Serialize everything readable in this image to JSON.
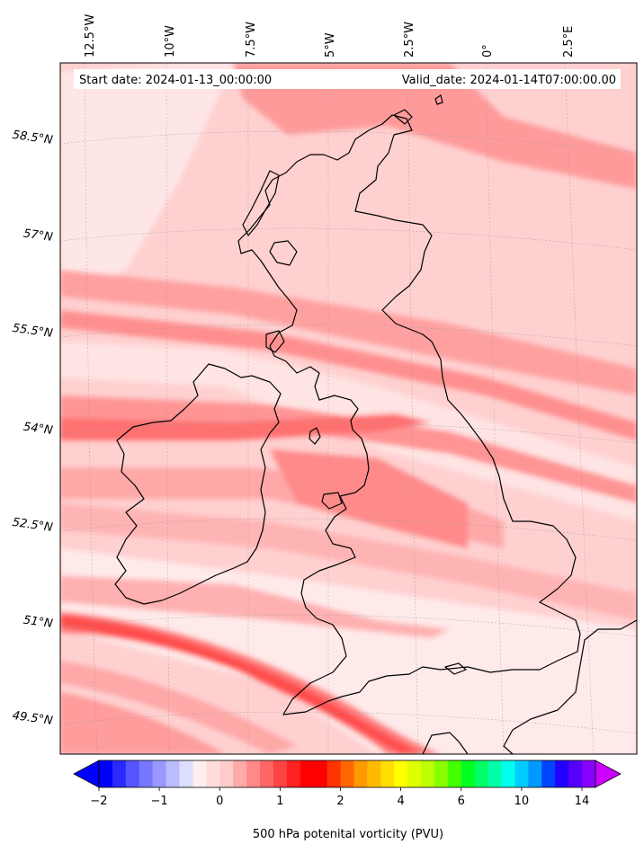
{
  "header": {
    "start_date": "Start date: 2024-01-13_00:00:00",
    "valid_date": "Valid_date: 2024-01-14T07:00:00.00"
  },
  "map": {
    "projection": "lambert-conformal",
    "region": "British Isles",
    "field": "500 hPa potential vorticity",
    "lon_labels": [
      "12.5°W",
      "10°W",
      "7.5°W",
      "5°W",
      "2.5°W",
      "0°",
      "2.5°E"
    ],
    "lat_labels": [
      "58.5°N",
      "57°N",
      "55.5°N",
      "54°N",
      "52.5°N",
      "51°N",
      "49.5°N"
    ],
    "gridlines": true,
    "coastlines": true
  },
  "colorbar": {
    "label": "500 hPa potenital vorticity (PVU)",
    "ticks": [
      "−2",
      "−1",
      "0",
      "1",
      "2",
      "4",
      "6",
      "10",
      "14"
    ],
    "extend": "both",
    "colors": [
      "#0000ff",
      "#2a2aff",
      "#5555ff",
      "#7777ff",
      "#9999ff",
      "#bbbbff",
      "#ddddff",
      "#ffeeee",
      "#ffdddd",
      "#ffcccc",
      "#ffaaaa",
      "#ff8888",
      "#ff6666",
      "#ff4444",
      "#ff2222",
      "#ff0000",
      "#ff0000",
      "#ff3300",
      "#ff6600",
      "#ff9900",
      "#ffbb00",
      "#ffdd00",
      "#ffff00",
      "#ddff00",
      "#bbff00",
      "#88ff00",
      "#44ff00",
      "#00ff22",
      "#00ff66",
      "#00ffaa",
      "#00ffee",
      "#00ccff",
      "#0099ff",
      "#0044ff",
      "#2200ff",
      "#5500ff",
      "#8800ff"
    ],
    "under_color": "#0000ff",
    "over_color": "#cc00ff"
  }
}
